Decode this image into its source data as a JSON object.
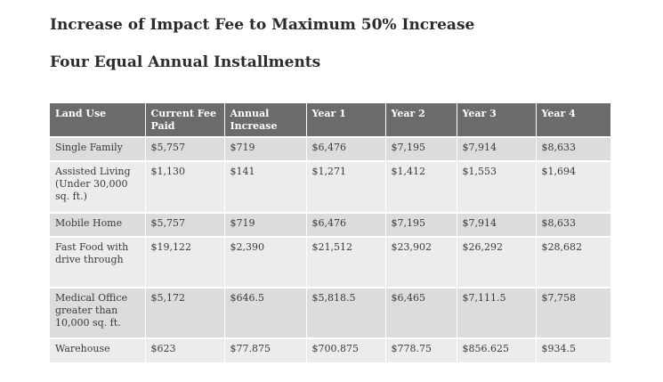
{
  "title": "Increase of Impact Fee to Maximum 50% Increase",
  "subtitle": "Four Equal Annual Installments",
  "table": {
    "headers": [
      "Land Use",
      "Current Fee Paid",
      "Annual Increase",
      "Year 1",
      "Year 2",
      "Year 3",
      "Year 4"
    ],
    "rows": [
      [
        "Single Family",
        "$5,757",
        "$719",
        "$6,476",
        "$7,195",
        "$7,914",
        "$8,633"
      ],
      [
        "Assisted Living (Under 30,000 sq. ft.)",
        "$1,130",
        "$141",
        "$1,271",
        "$1,412",
        "$1,553",
        "$1,694"
      ],
      [
        "Mobile Home",
        "$5,757",
        "$719",
        "$6,476",
        "$7,195",
        "$7,914",
        "$8,633"
      ],
      [
        "Fast Food with drive through",
        "$19,122",
        "$2,390",
        "$21,512",
        "$23,902",
        "$26,292",
        "$28,682"
      ],
      [
        "Medical Office greater than 10,000 sq. ft.",
        "$5,172",
        "$646.5",
        "$5,818.5",
        "$6,465",
        "$7,111.5",
        "$7,758"
      ],
      [
        "Warehouse",
        "$623",
        "$77.875",
        "$700.875",
        "$778.75",
        "$856.625",
        "$934.5"
      ]
    ]
  }
}
